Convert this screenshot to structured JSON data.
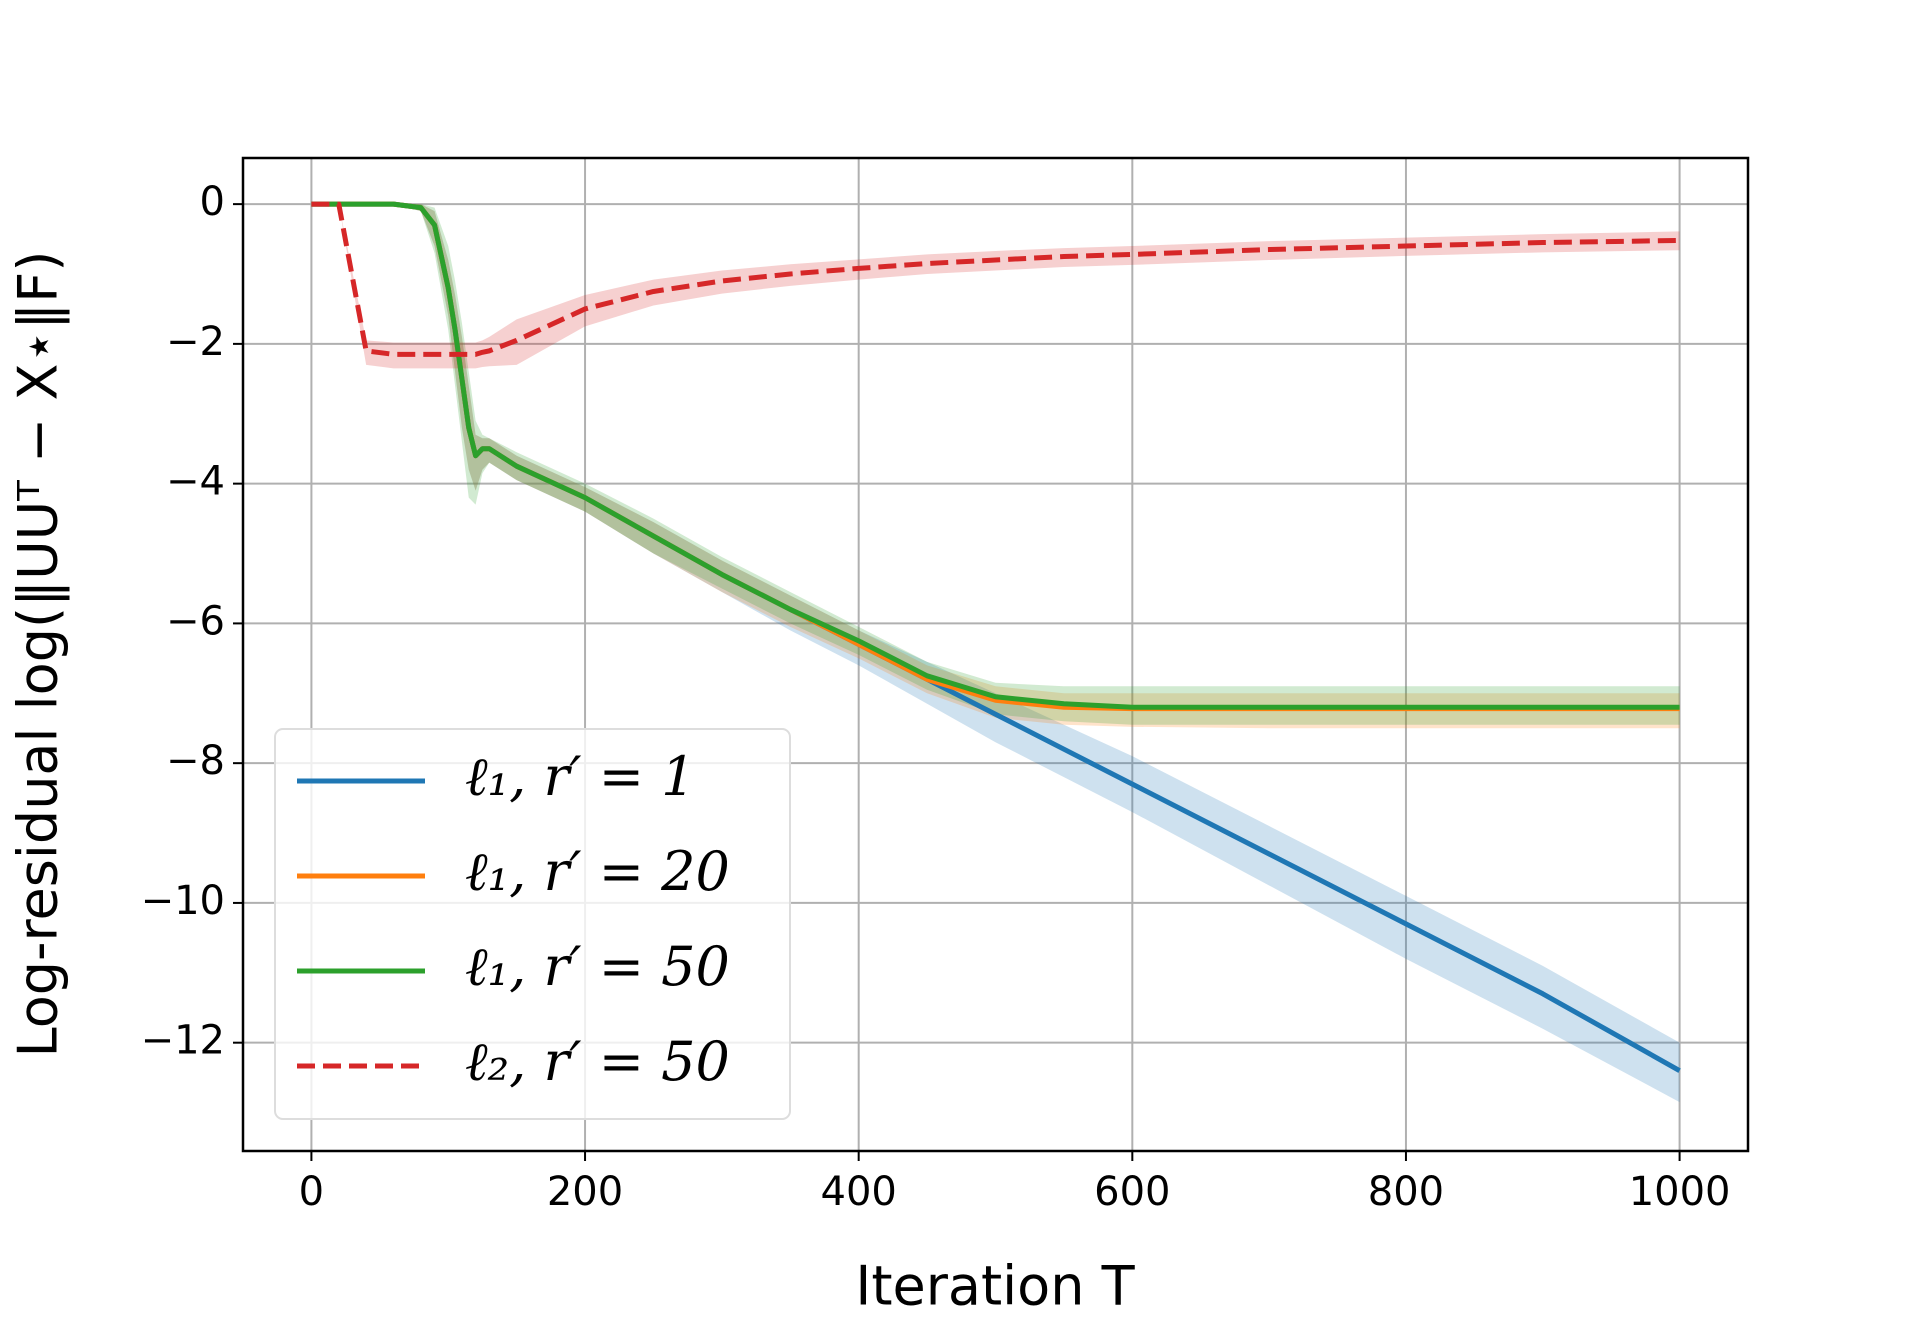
{
  "chart_data": {
    "type": "line",
    "xlabel": "Iteration T",
    "ylabel": "Log-residual log(‖UUᵀ − X⋆‖F)",
    "x": [
      0,
      20,
      40,
      60,
      80,
      90,
      100,
      105,
      110,
      115,
      120,
      125,
      130,
      150,
      200,
      250,
      300,
      350,
      400,
      450,
      500,
      550,
      600,
      700,
      800,
      900,
      1000
    ],
    "xlim": [
      -50,
      1050
    ],
    "xticks": [
      0,
      200,
      400,
      600,
      800,
      1000
    ],
    "ylim": [
      -13.55,
      0.66
    ],
    "yticks": [
      {
        "value": -12,
        "label": "−12"
      },
      {
        "value": -10,
        "label": "−10"
      },
      {
        "value": -8,
        "label": "−8"
      },
      {
        "value": -6,
        "label": "−6"
      },
      {
        "value": -4,
        "label": "−4"
      },
      {
        "value": -2,
        "label": "−2"
      },
      0
    ],
    "grid": true,
    "legend": "lower left",
    "series": [
      {
        "name": "ℓ₁, r′ = 1",
        "color": "#1f77b4",
        "linestyle": "solid",
        "values": [
          0,
          0,
          0,
          0,
          -0.05,
          -0.3,
          -1.2,
          -1.8,
          -2.5,
          -3.2,
          -3.6,
          -3.5,
          -3.5,
          -3.75,
          -4.2,
          -4.75,
          -5.3,
          -5.8,
          -6.3,
          -6.8,
          -7.3,
          -7.8,
          -8.3,
          -9.3,
          -10.3,
          -11.3,
          -12.4
        ],
        "lower": [
          0,
          0,
          0,
          0,
          -0.1,
          -0.6,
          -1.6,
          -2.4,
          -3.2,
          -3.8,
          -4.1,
          -3.8,
          -3.7,
          -3.95,
          -4.4,
          -5.0,
          -5.55,
          -6.1,
          -6.6,
          -7.15,
          -7.7,
          -8.2,
          -8.7,
          -9.75,
          -10.8,
          -11.8,
          -12.85
        ],
        "upper": [
          0,
          0,
          0,
          0,
          0,
          -0.1,
          -0.8,
          -1.3,
          -1.9,
          -2.6,
          -3.3,
          -3.35,
          -3.35,
          -3.6,
          -4.05,
          -4.55,
          -5.1,
          -5.6,
          -6.1,
          -6.55,
          -7.0,
          -7.45,
          -7.9,
          -8.9,
          -9.9,
          -10.9,
          -12.0
        ]
      },
      {
        "name": "ℓ₁, r′ = 20",
        "color": "#ff7f0e",
        "linestyle": "solid",
        "values": [
          0,
          0,
          0,
          0,
          -0.05,
          -0.3,
          -1.2,
          -1.8,
          -2.5,
          -3.2,
          -3.6,
          -3.5,
          -3.5,
          -3.75,
          -4.2,
          -4.75,
          -5.3,
          -5.8,
          -6.3,
          -6.8,
          -7.1,
          -7.2,
          -7.22,
          -7.22,
          -7.22,
          -7.22,
          -7.22
        ],
        "lower": [
          0,
          0,
          0,
          0,
          -0.1,
          -0.6,
          -1.6,
          -2.4,
          -3.2,
          -3.8,
          -4.1,
          -3.8,
          -3.7,
          -3.95,
          -4.4,
          -5.0,
          -5.55,
          -6.05,
          -6.5,
          -7.0,
          -7.35,
          -7.45,
          -7.48,
          -7.5,
          -7.5,
          -7.5,
          -7.5
        ],
        "upper": [
          0,
          0,
          0,
          0,
          0,
          -0.1,
          -0.8,
          -1.3,
          -1.9,
          -2.6,
          -3.3,
          -3.35,
          -3.35,
          -3.6,
          -4.05,
          -4.55,
          -5.1,
          -5.6,
          -6.1,
          -6.6,
          -6.9,
          -7.0,
          -7.0,
          -7.0,
          -7.0,
          -7.0,
          -7.0
        ]
      },
      {
        "name": "ℓ₁, r′ = 50",
        "color": "#2ca02c",
        "linestyle": "solid",
        "values": [
          0,
          0,
          0,
          0,
          -0.05,
          -0.3,
          -1.2,
          -1.8,
          -2.5,
          -3.2,
          -3.6,
          -3.5,
          -3.5,
          -3.75,
          -4.2,
          -4.75,
          -5.3,
          -5.8,
          -6.25,
          -6.75,
          -7.05,
          -7.15,
          -7.2,
          -7.2,
          -7.2,
          -7.2,
          -7.2
        ],
        "lower": [
          0,
          0,
          0,
          0,
          -0.1,
          -0.7,
          -1.8,
          -2.6,
          -3.4,
          -4.2,
          -4.3,
          -3.85,
          -3.7,
          -3.95,
          -4.4,
          -5.0,
          -5.5,
          -6.0,
          -6.45,
          -6.95,
          -7.3,
          -7.4,
          -7.45,
          -7.45,
          -7.45,
          -7.45,
          -7.45
        ],
        "upper": [
          0,
          0,
          0,
          0,
          0,
          -0.05,
          -0.6,
          -1.1,
          -1.7,
          -2.4,
          -3.1,
          -3.3,
          -3.35,
          -3.55,
          -4.0,
          -4.5,
          -5.05,
          -5.55,
          -6.05,
          -6.55,
          -6.85,
          -6.9,
          -6.9,
          -6.9,
          -6.9,
          -6.9,
          -6.9
        ]
      },
      {
        "name": "ℓ₂, r′ = 50",
        "color": "#d62728",
        "linestyle": "dashed",
        "values": [
          0,
          0,
          -2.1,
          -2.15,
          -2.15,
          -2.15,
          -2.15,
          -2.15,
          -2.15,
          -2.15,
          -2.15,
          -2.12,
          -2.1,
          -1.95,
          -1.5,
          -1.25,
          -1.1,
          -1.0,
          -0.92,
          -0.85,
          -0.8,
          -0.75,
          -0.72,
          -0.65,
          -0.6,
          -0.55,
          -0.52
        ],
        "lower": [
          0,
          0,
          -2.3,
          -2.35,
          -2.35,
          -2.35,
          -2.35,
          -2.35,
          -2.35,
          -2.35,
          -2.35,
          -2.33,
          -2.32,
          -2.3,
          -1.75,
          -1.45,
          -1.28,
          -1.17,
          -1.08,
          -1.0,
          -0.95,
          -0.9,
          -0.87,
          -0.8,
          -0.74,
          -0.69,
          -0.66
        ],
        "upper": [
          0,
          0,
          -1.95,
          -1.98,
          -1.98,
          -1.98,
          -1.98,
          -1.98,
          -1.98,
          -1.98,
          -1.98,
          -1.95,
          -1.9,
          -1.65,
          -1.3,
          -1.08,
          -0.95,
          -0.86,
          -0.79,
          -0.72,
          -0.67,
          -0.63,
          -0.6,
          -0.53,
          -0.48,
          -0.43,
          -0.39
        ]
      }
    ]
  }
}
